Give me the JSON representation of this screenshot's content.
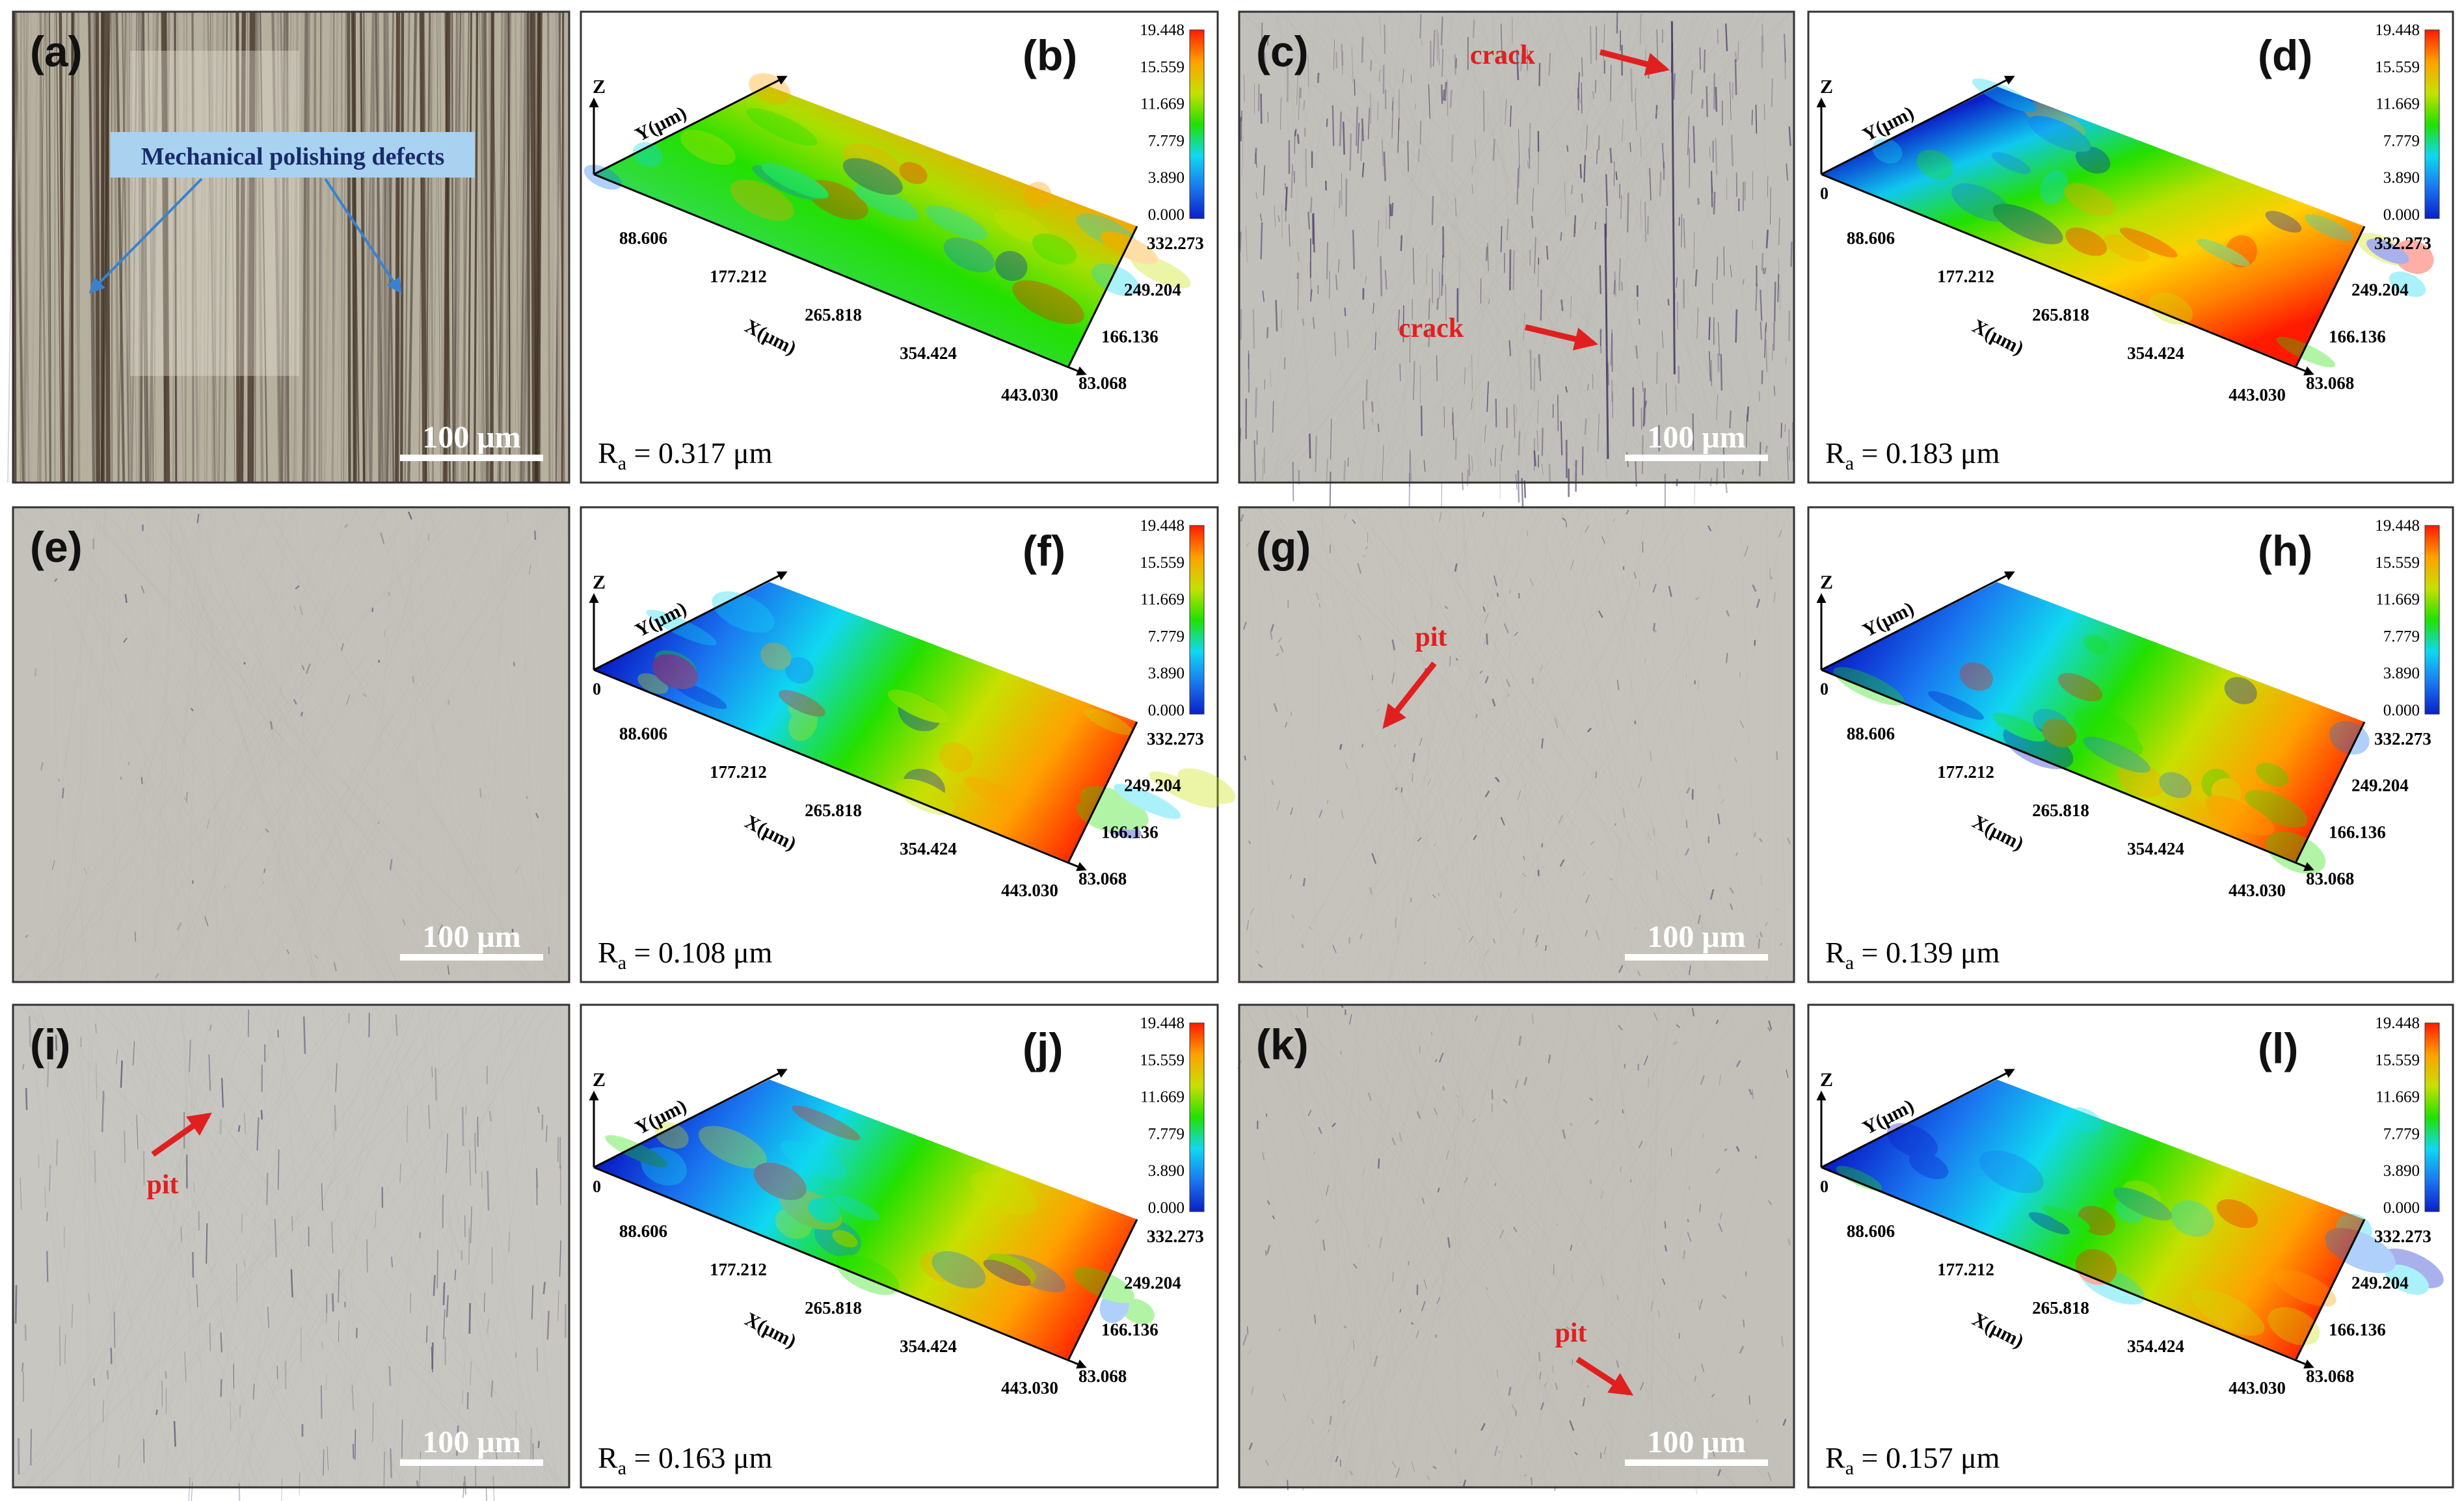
{
  "figure": {
    "scale_bar_label": "100 μm",
    "ra_prefix": "R",
    "ra_subscript": "a",
    "ra_unit": "μm",
    "axis_labels": {
      "x": "X(μm)",
      "y": "Y(μm)",
      "z": "Z"
    },
    "x_ticks": [
      "88.606",
      "177.212",
      "265.818",
      "354.424",
      "443.030"
    ],
    "y_ticks": [
      "332.273",
      "249.204",
      "166.136",
      "83.068"
    ],
    "z_zero": "0",
    "colorbar_ticks": [
      "19.448",
      "15.559",
      "11.669",
      "7.779",
      "3.890",
      "0.000"
    ],
    "colors": {
      "colormap": [
        "#0a1fc8",
        "#1a78f0",
        "#10d8f0",
        "#22e000",
        "#c8e000",
        "#ffa000",
        "#ff1a00"
      ],
      "annotation_red": "#e02020",
      "annotation_blue": "#3a82d0",
      "callout_box": "#a9d2f0"
    }
  },
  "panels": [
    {
      "id": "a",
      "label": "(a)",
      "kind": "micrograph",
      "texture": "scratched",
      "annotations": [
        {
          "text": "Mechanical polishing defects",
          "type": "callout",
          "color": "blue"
        }
      ]
    },
    {
      "id": "b",
      "label": "(b)",
      "kind": "surface",
      "ra_value": "0.317",
      "show_z_zero": false,
      "surface_style": "rough"
    },
    {
      "id": "c",
      "label": "(c)",
      "kind": "micrograph",
      "texture": "cracked",
      "annotations": [
        {
          "text": "crack",
          "type": "arrow",
          "color": "red"
        },
        {
          "text": "crack",
          "type": "arrow",
          "color": "red"
        }
      ]
    },
    {
      "id": "d",
      "label": "(d)",
      "kind": "surface",
      "ra_value": "0.183",
      "show_z_zero": true,
      "surface_style": "inverted"
    },
    {
      "id": "e",
      "label": "(e)",
      "kind": "micrograph",
      "texture": "smooth",
      "annotations": []
    },
    {
      "id": "f",
      "label": "(f)",
      "kind": "surface",
      "ra_value": "0.108",
      "show_z_zero": true,
      "surface_style": "smooth"
    },
    {
      "id": "g",
      "label": "(g)",
      "kind": "micrograph",
      "texture": "pitted",
      "annotations": [
        {
          "text": "pit",
          "type": "arrow",
          "color": "red"
        }
      ]
    },
    {
      "id": "h",
      "label": "(h)",
      "kind": "surface",
      "ra_value": "0.139",
      "show_z_zero": true,
      "surface_style": "smooth"
    },
    {
      "id": "i",
      "label": "(i)",
      "kind": "micrograph",
      "texture": "pitted-light",
      "annotations": [
        {
          "text": "pit",
          "type": "arrow",
          "color": "red"
        }
      ]
    },
    {
      "id": "j",
      "label": "(j)",
      "kind": "surface",
      "ra_value": "0.163",
      "show_z_zero": true,
      "surface_style": "smooth"
    },
    {
      "id": "k",
      "label": "(k)",
      "kind": "micrograph",
      "texture": "smooth-dots",
      "annotations": [
        {
          "text": "pit",
          "type": "arrow",
          "color": "red"
        }
      ]
    },
    {
      "id": "l",
      "label": "(l)",
      "kind": "surface",
      "ra_value": "0.157",
      "show_z_zero": true,
      "surface_style": "smooth"
    }
  ]
}
